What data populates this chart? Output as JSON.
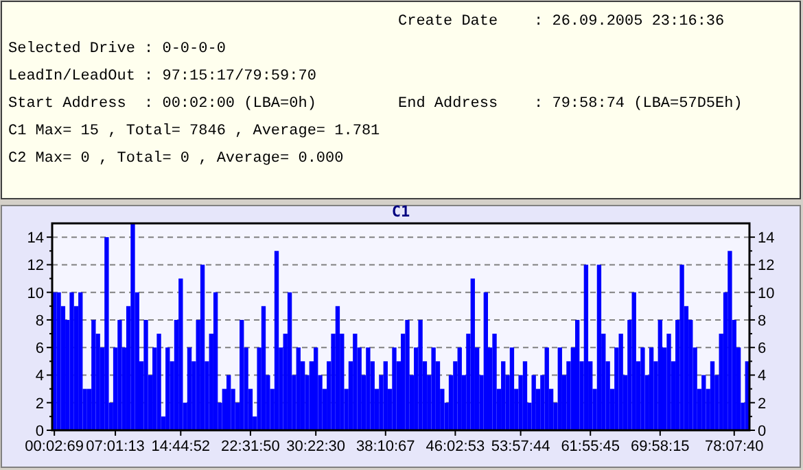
{
  "chart_data": {
    "type": "bar",
    "title": "C1",
    "annotations": [
      "Create Date    : 26.09.2005 23:16:36",
      "Selected Drive : 0-0-0-0",
      "LeadIn/LeadOut : 97:15:17/79:59:70",
      "Start Address  : 00:02:00 (LBA=0h)",
      "End Address    : 79:58:74 (LBA=57D5Eh)",
      "C1 Max= 15 , Total= 7846 , Average= 1.781",
      "C2 Max= 0 , Total= 0 , Average= 0.000"
    ],
    "categories": [
      "00:02:69",
      null,
      null,
      null,
      null,
      null,
      null,
      null,
      null,
      null,
      null,
      null,
      null,
      null,
      "07:01:13",
      null,
      null,
      null,
      null,
      null,
      null,
      null,
      null,
      null,
      null,
      null,
      null,
      null,
      null,
      "14:44:52",
      null,
      null,
      null,
      null,
      null,
      null,
      null,
      null,
      null,
      null,
      null,
      null,
      null,
      null,
      null,
      "22:31:50",
      null,
      null,
      null,
      null,
      null,
      null,
      null,
      null,
      null,
      null,
      null,
      null,
      null,
      null,
      "30:22:30",
      null,
      null,
      null,
      null,
      null,
      null,
      null,
      null,
      null,
      null,
      null,
      null,
      null,
      null,
      null,
      "38:10:67",
      null,
      null,
      null,
      null,
      null,
      null,
      null,
      null,
      null,
      null,
      null,
      null,
      null,
      null,
      null,
      "46:02:53",
      null,
      null,
      null,
      null,
      null,
      null,
      null,
      null,
      null,
      null,
      null,
      null,
      null,
      null,
      "53:57:44",
      null,
      null,
      null,
      null,
      null,
      null,
      null,
      null,
      null,
      null,
      null,
      null,
      null,
      null,
      null,
      "61:55:45",
      null,
      null,
      null,
      null,
      null,
      null,
      null,
      null,
      null,
      null,
      null,
      null,
      null,
      null,
      null,
      "69:58:15",
      null,
      null,
      null,
      null,
      null,
      null,
      null,
      null,
      null,
      null,
      null,
      null,
      null,
      null,
      null,
      null,
      "78:07:40",
      null,
      null,
      null
    ],
    "series": [
      {
        "color": "#0000ff",
        "values": [
          10,
          10,
          9,
          8,
          10,
          9,
          10,
          3,
          3,
          8,
          7,
          6,
          14,
          2,
          6,
          8,
          6,
          9,
          15,
          10,
          5,
          8,
          4,
          6,
          7,
          1,
          6,
          5,
          8,
          11,
          2,
          6,
          5,
          8,
          12,
          5,
          7,
          10,
          2,
          3,
          4,
          3,
          2,
          8,
          6,
          3,
          1,
          6,
          9,
          4,
          3,
          13,
          6,
          7,
          10,
          4,
          6,
          5,
          4,
          5,
          6,
          4,
          3,
          5,
          7,
          9,
          7,
          3,
          5,
          7,
          6,
          4,
          6,
          5,
          3,
          4,
          5,
          3,
          6,
          5,
          7,
          8,
          4,
          6,
          8,
          5,
          4,
          6,
          5,
          3,
          2,
          4,
          5,
          6,
          4,
          7,
          11,
          6,
          4,
          10,
          6,
          7,
          3,
          5,
          4,
          6,
          3,
          4,
          5,
          2,
          4,
          3,
          4,
          6,
          3,
          2,
          6,
          4,
          5,
          6,
          8,
          5,
          12,
          5,
          3,
          12,
          7,
          5,
          3,
          6,
          7,
          4,
          8,
          10,
          5,
          6,
          4,
          6,
          5,
          8,
          6,
          7,
          5,
          8,
          12,
          9,
          8,
          6,
          3,
          4,
          3,
          5,
          4,
          7,
          10,
          13,
          8,
          6,
          2,
          5
        ]
      }
    ],
    "ylim": [
      0,
      15
    ],
    "yticks": [
      0,
      {
        "value": 1,
        "label": null
      },
      2,
      {
        "value": 3,
        "label": null
      },
      4,
      {
        "value": 5,
        "label": null
      },
      6,
      {
        "value": 7,
        "label": null
      },
      8,
      {
        "value": 9,
        "label": null
      },
      10,
      {
        "value": 11,
        "label": null
      },
      12,
      {
        "value": 13,
        "label": null
      },
      14
    ],
    "y2lim": [
      0,
      15
    ],
    "y2ticks": [
      0,
      {
        "value": 1,
        "label": null
      },
      2,
      {
        "value": 3,
        "label": null
      },
      4,
      {
        "value": 5,
        "label": null
      },
      6,
      {
        "value": 7,
        "label": null
      },
      8,
      {
        "value": 9,
        "label": null
      },
      10,
      {
        "value": 11,
        "label": null
      },
      12,
      {
        "value": 13,
        "label": null
      },
      14
    ],
    "grid": "y"
  }
}
